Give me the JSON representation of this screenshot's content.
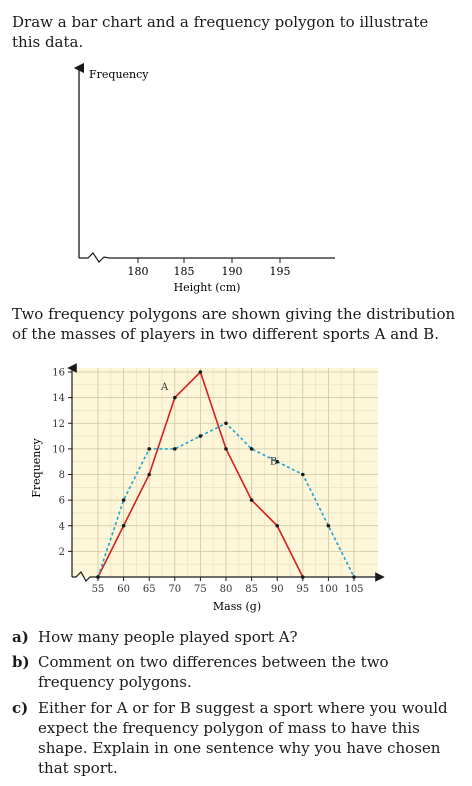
{
  "intro_text": "Draw a bar chart and a frequency polygon to illustrate this data.",
  "empty_chart": {
    "ylabel": "Frequency",
    "xlabel": "Height (cm)",
    "x_ticks": [
      "180",
      "185",
      "190",
      "195"
    ]
  },
  "paragraph2": "Two frequency polygons are shown giving the distribution of the masses of players in two different sports A and B.",
  "chart_data": {
    "type": "line",
    "xlabel": "Mass (g)",
    "ylabel": "Frequency",
    "xlim": [
      50,
      106
    ],
    "ylim": [
      0,
      17
    ],
    "x_ticks": [
      "55",
      "60",
      "65",
      "70",
      "75",
      "80",
      "85",
      "90",
      "95",
      "100",
      "105"
    ],
    "y_ticks": [
      "2",
      "4",
      "6",
      "8",
      "10",
      "12",
      "14",
      "16"
    ],
    "grid": true,
    "series": [
      {
        "name": "A",
        "color": "#d42020",
        "style": "solid",
        "x": [
          55,
          60,
          65,
          70,
          75,
          80,
          85,
          90,
          95
        ],
        "y": [
          0,
          4,
          8,
          14,
          16,
          10,
          6,
          4,
          0
        ]
      },
      {
        "name": "B",
        "color": "#1fa3d6",
        "style": "dashed",
        "x": [
          55,
          60,
          65,
          70,
          75,
          80,
          85,
          90,
          95,
          100,
          105
        ],
        "y": [
          0,
          6,
          10,
          10,
          11,
          12,
          10,
          9,
          8,
          4,
          0
        ]
      }
    ]
  },
  "questions": [
    {
      "label": "a)",
      "text": "How many people played sport A?"
    },
    {
      "label": "b)",
      "text": "Comment on two differences between the two frequency polygons."
    },
    {
      "label": "c)",
      "text": "Either for A or for B suggest a sport where you would expect the frequency polygon of mass to have this shape. Explain in one sentence why you have chosen that sport."
    }
  ]
}
